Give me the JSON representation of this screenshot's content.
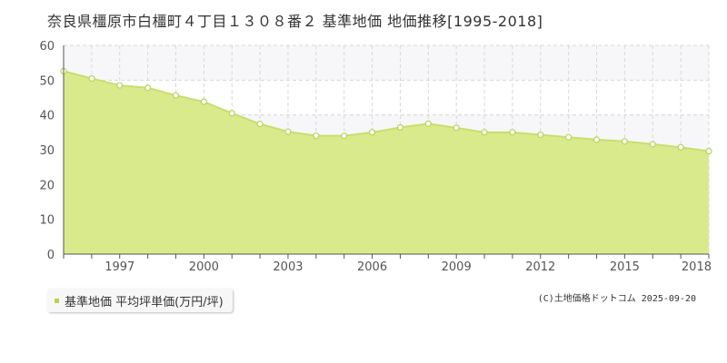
{
  "chart_data": {
    "type": "area",
    "title": "奈良県橿原市白橿町４丁目１３０８番２ 基準地価 地価推移[1995-2018]",
    "xlabel": "",
    "ylabel": "",
    "ylim": [
      0,
      60
    ],
    "xlim": [
      1995,
      2018
    ],
    "yticks": [
      "0",
      "10",
      "20",
      "30",
      "40",
      "50",
      "60"
    ],
    "xticks": [
      {
        "x": 1997,
        "label": "1997"
      },
      {
        "x": 2000,
        "label": "2000"
      },
      {
        "x": 2003,
        "label": "2003"
      },
      {
        "x": 2006,
        "label": "2006"
      },
      {
        "x": 2009,
        "label": "2009"
      },
      {
        "x": 2012,
        "label": "2012"
      },
      {
        "x": 2015,
        "label": "2015"
      },
      {
        "x": 2018,
        "label": "2018"
      }
    ],
    "grid": true,
    "legend_position": "bottom-left",
    "series": [
      {
        "name": "基準地価 平均坪単価(万円/坪)",
        "x": [
          1995,
          1996,
          1997,
          1998,
          1999,
          2000,
          2001,
          2002,
          2003,
          2004,
          2005,
          2006,
          2007,
          2008,
          2009,
          2010,
          2011,
          2012,
          2013,
          2014,
          2015,
          2016,
          2017,
          2018
        ],
        "values": [
          52.6,
          50.5,
          48.5,
          47.8,
          45.6,
          43.8,
          40.5,
          37.4,
          35.2,
          34.0,
          34.0,
          35.0,
          36.4,
          37.5,
          36.3,
          35.0,
          35.0,
          34.3,
          33.6,
          32.9,
          32.4,
          31.6,
          30.7,
          29.6
        ]
      }
    ]
  },
  "legend": {
    "label": "基準地価 平均坪単価(万円/坪)"
  },
  "credit": "(C)土地価格ドットコム 2025-09-20",
  "colors": {
    "area_fill": "#d9ea8c",
    "line": "#c8df6a",
    "marker_fill": "#ffffff",
    "marker_stroke": "#b5d45a",
    "legend_swatch": "#b5d44b",
    "grid": "#d8d8d8",
    "band": "#f7f7f9",
    "axis": "#555555"
  }
}
